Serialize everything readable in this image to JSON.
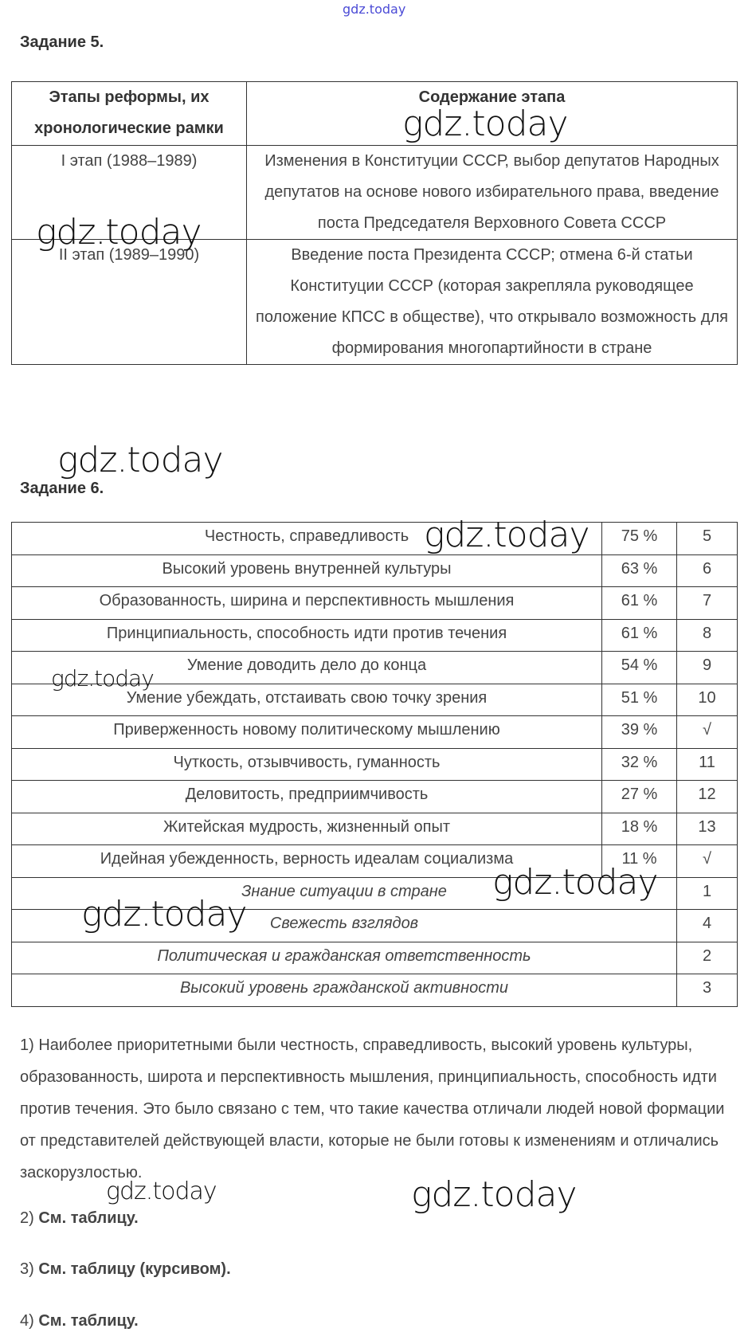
{
  "watermark": "gdz.today",
  "task5": {
    "title": "Задание 5.",
    "headers": [
      "Этапы реформы, их хронологические рамки",
      "Содержание этапа"
    ],
    "rows": [
      {
        "stage": "I этап (1988–1989)",
        "content": "Изменения в Конституции СССР, выбор депутатов Народных депутатов на основе нового избирательного права, введение поста Председателя Верховного Совета СССР"
      },
      {
        "stage": "II этап (1989–1990)",
        "content": "Введение поста Президента СССР; отмена 6-й статьи Конституции СССР (которая закрепляла руководящее положение КПСС в обществе), что открывало возможность для формирования многопартийности в стране"
      }
    ]
  },
  "task6": {
    "title": "Задание 6.",
    "rows": [
      {
        "quality": "Честность, справедливость",
        "percent": "75 %",
        "rank": "5",
        "italic": false
      },
      {
        "quality": "Высокий уровень внутренней культуры",
        "percent": "63 %",
        "rank": "6",
        "italic": false
      },
      {
        "quality": "Образованность, ширина и перспективность мышления",
        "percent": "61 %",
        "rank": "7",
        "italic": false
      },
      {
        "quality": "Принципиальность, способность идти против течения",
        "percent": "61 %",
        "rank": "8",
        "italic": false
      },
      {
        "quality": "Умение доводить дело до конца",
        "percent": "54 %",
        "rank": "9",
        "italic": false
      },
      {
        "quality": "Умение убеждать, отстаивать свою точку зрения",
        "percent": "51 %",
        "rank": "10",
        "italic": false
      },
      {
        "quality": "Приверженность новому политическому мышлению",
        "percent": "39 %",
        "rank": "√",
        "italic": false
      },
      {
        "quality": "Чуткость, отзывчивость, гуманность",
        "percent": "32 %",
        "rank": "11",
        "italic": false
      },
      {
        "quality": "Деловитость, предприимчивость",
        "percent": "27 %",
        "rank": "12",
        "italic": false
      },
      {
        "quality": "Житейская мудрость, жизненный опыт",
        "percent": "18 %",
        "rank": "13",
        "italic": false
      },
      {
        "quality": "Идейная убежденность, верность идеалам социализма",
        "percent": "11 %",
        "rank": "√",
        "italic": false
      },
      {
        "quality": "Знание ситуации в стране",
        "percent": "",
        "rank": "1",
        "italic": true
      },
      {
        "quality": "Свежесть взглядов",
        "percent": "",
        "rank": "4",
        "italic": true
      },
      {
        "quality": "Политическая и гражданская ответственность",
        "percent": "",
        "rank": "2",
        "italic": true
      },
      {
        "quality": "Высокий уровень гражданской активности",
        "percent": "",
        "rank": "3",
        "italic": true
      }
    ],
    "answers": [
      {
        "num": "1)",
        "text": "Наиболее приоритетными были честность, справедливость, высокий уровень культуры, образованность, широта и перспективность мышления, принципиальность, способность идти против течения. Это было связано с тем, что такие качества отличали людей новой формации от представителей действующей власти, которые не были готовы к изменениям и отличались заскорузлостью.",
        "bold": false
      },
      {
        "num": "2)",
        "text": "См. таблицу.",
        "bold": true
      },
      {
        "num": "3)",
        "text": "См. таблицу (курсивом).",
        "bold": true
      },
      {
        "num": "4)",
        "text": "См. таблицу.",
        "bold": true
      }
    ]
  }
}
